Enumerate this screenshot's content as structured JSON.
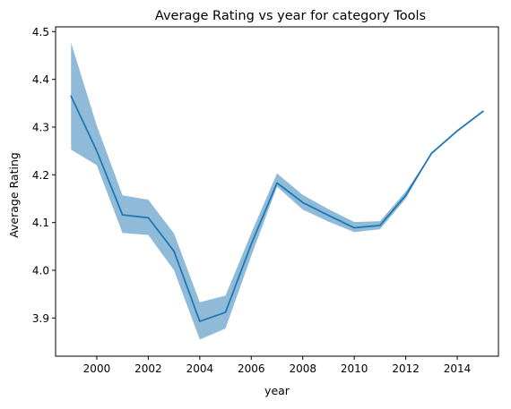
{
  "chart_data": {
    "type": "line",
    "title": "Average Rating vs year for category Tools",
    "xlabel": "year",
    "ylabel": "Average Rating",
    "xlim": [
      1998.4,
      2015.6
    ],
    "ylim": [
      3.82,
      4.51
    ],
    "x_ticks": [
      2000,
      2002,
      2004,
      2006,
      2008,
      2010,
      2012,
      2014
    ],
    "y_ticks": [
      3.9,
      4.0,
      4.1,
      4.2,
      4.3,
      4.4,
      4.5
    ],
    "grid": false,
    "legend": "none",
    "series": [
      {
        "x": [
          1999,
          2000,
          2001,
          2002,
          2003,
          2004,
          2005,
          2006,
          2007,
          2008,
          2009,
          2010,
          2011,
          2012,
          2013,
          2014,
          2015
        ],
        "y": [
          4.365,
          4.25,
          4.116,
          4.11,
          4.04,
          3.893,
          3.912,
          4.055,
          4.183,
          4.142,
          4.115,
          4.089,
          4.094,
          4.157,
          4.245,
          4.292,
          4.333
        ],
        "ci_lower": [
          4.253,
          4.22,
          4.078,
          4.074,
          4.0,
          3.855,
          3.878,
          4.03,
          4.175,
          4.127,
          4.102,
          4.08,
          4.086,
          4.15,
          4.245,
          4.292,
          4.333
        ],
        "ci_upper": [
          4.477,
          4.303,
          4.157,
          4.148,
          4.077,
          3.933,
          3.947,
          4.078,
          4.203,
          4.158,
          4.128,
          4.101,
          4.103,
          4.165,
          4.245,
          4.292,
          4.333
        ],
        "line_color": "#1f77b4",
        "band_color": "#1f77b4"
      }
    ]
  }
}
